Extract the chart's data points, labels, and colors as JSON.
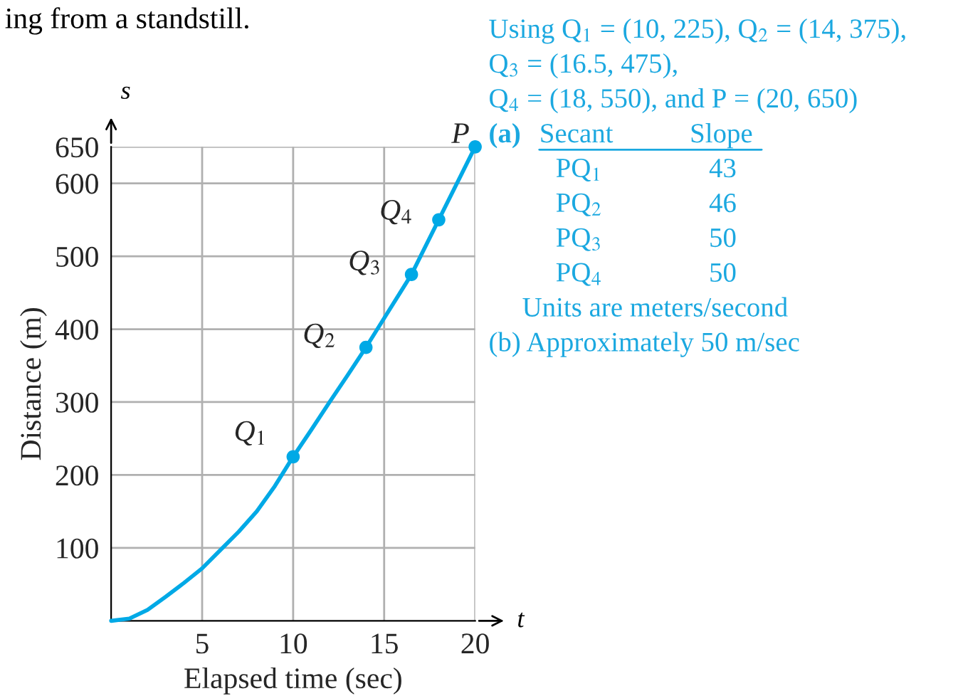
{
  "chart_data": {
    "type": "line",
    "xlabel": "Elapsed time (sec)",
    "ylabel": "Distance (m)",
    "xlim": [
      0,
      20
    ],
    "ylim": [
      0,
      650
    ],
    "xticks": [
      5,
      10,
      15,
      20
    ],
    "yticks": [
      100,
      200,
      300,
      400,
      500,
      600,
      650
    ],
    "grid": true,
    "series": [
      {
        "color": "#00a9e6",
        "marker": "none",
        "x": [
          0,
          1,
          2,
          3,
          4,
          5,
          6,
          7,
          8,
          9,
          10,
          11,
          12,
          13,
          14,
          15,
          16,
          16.5,
          17,
          18,
          19,
          20
        ],
        "values": [
          0,
          3,
          15,
          33,
          52,
          72,
          97,
          122,
          150,
          185,
          225,
          262,
          300,
          337,
          375,
          415,
          455,
          475,
          500,
          550,
          600,
          650
        ]
      },
      {
        "type": "scatter",
        "color": "#00a9e6",
        "marker": "circle",
        "x": [
          10,
          14,
          16.5,
          18,
          20
        ],
        "values": [
          225,
          375,
          475,
          550,
          650
        ]
      }
    ],
    "annotations": [
      {
        "text": "Q$_{1}$",
        "x": 10,
        "y": 225
      },
      {
        "text": "Q$_{2}$",
        "x": 14,
        "y": 375
      },
      {
        "text": "Q$_{3}$",
        "x": 16.5,
        "y": 475
      },
      {
        "text": "Q$_{4}$",
        "x": 18,
        "y": 550
      },
      {
        "text": "P",
        "x": 20,
        "y": 650
      },
      "s",
      "t",
      "ing from a standstill.",
      "Using Q$_{1}$ = (10, 225), Q$_{2}$ = (14, 375),",
      "Q$_{3}$ = (16.5, 475),",
      "Q$_{4}$ = (18, 550), and P = (20, 650)",
      "(a)",
      "Secant",
      "Slope",
      "PQ$_{1}$",
      "43",
      "PQ$_{2}$",
      "46",
      "PQ$_{3}$",
      "50",
      "PQ$_{4}$",
      "50",
      "Units are meters/second",
      "(b) Approximately 50 m/sec"
    ]
  }
}
